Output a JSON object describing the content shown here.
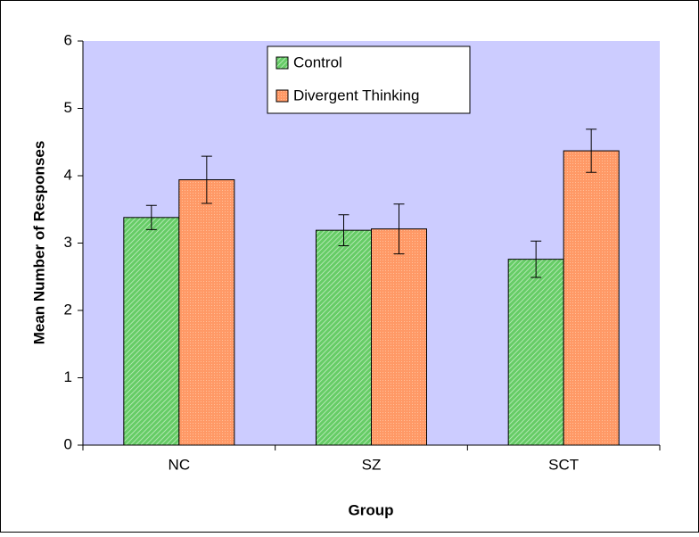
{
  "chart_data": {
    "type": "bar",
    "categories": [
      "NC",
      "SZ",
      "SCT"
    ],
    "series": [
      {
        "name": "Control",
        "color": "#66cc66",
        "values": [
          3.38,
          3.19,
          2.76
        ],
        "errors": [
          0.18,
          0.23,
          0.27
        ]
      },
      {
        "name": "Divergent Thinking",
        "color": "#ff9966",
        "values": [
          3.94,
          3.21,
          4.37
        ],
        "errors": [
          0.35,
          0.37,
          0.32
        ]
      }
    ],
    "ylabel": "Mean Number of Responses",
    "xlabel": "Group",
    "ylim": [
      0,
      6
    ],
    "yticks": [
      0,
      1,
      2,
      3,
      4,
      5,
      6
    ],
    "grid": false,
    "legend": "top"
  }
}
